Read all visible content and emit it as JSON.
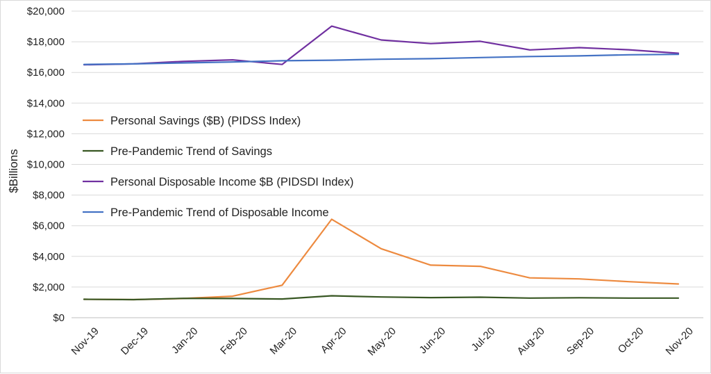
{
  "chart_data": {
    "type": "line",
    "ylabel": "$Billions",
    "ylim": [
      0,
      20000
    ],
    "yticks": [
      "$0",
      "$2,000",
      "$4,000",
      "$6,000",
      "$8,000",
      "$10,000",
      "$12,000",
      "$14,000",
      "$16,000",
      "$18,000",
      "$20,000"
    ],
    "categories": [
      "Nov-19",
      "Dec-19",
      "Jan-20",
      "Feb-20",
      "Mar-20",
      "Apr-20",
      "May-20",
      "Jun-20",
      "Jul-20",
      "Aug-20",
      "Sep-20",
      "Oct-20",
      "Nov-20"
    ],
    "grid": true,
    "legend_position": "center-left",
    "series": [
      {
        "name": "Personal Savings ($B)  (PIDSS Index)",
        "color": "#ED8A3F",
        "values": [
          1200,
          1180,
          1250,
          1400,
          2120,
          6420,
          4500,
          3430,
          3350,
          2600,
          2530,
          2350,
          2200
        ]
      },
      {
        "name": "Pre-Pandemic Trend of Savings",
        "color": "#385723",
        "values": [
          1200,
          1180,
          1260,
          1250,
          1220,
          1430,
          1350,
          1310,
          1340,
          1280,
          1300,
          1280,
          1280
        ]
      },
      {
        "name": "Personal Disposable Income $B (PIDSDI Index)",
        "color": "#7030A0",
        "values": [
          16500,
          16560,
          16720,
          16820,
          16520,
          19020,
          18120,
          17880,
          18030,
          17470,
          17620,
          17480,
          17250
        ]
      },
      {
        "name": "Pre-Pandemic Trend of Disposable Income",
        "color": "#4472C4",
        "values": [
          16520,
          16560,
          16620,
          16680,
          16760,
          16800,
          16860,
          16900,
          16970,
          17040,
          17080,
          17150,
          17180
        ]
      }
    ]
  }
}
